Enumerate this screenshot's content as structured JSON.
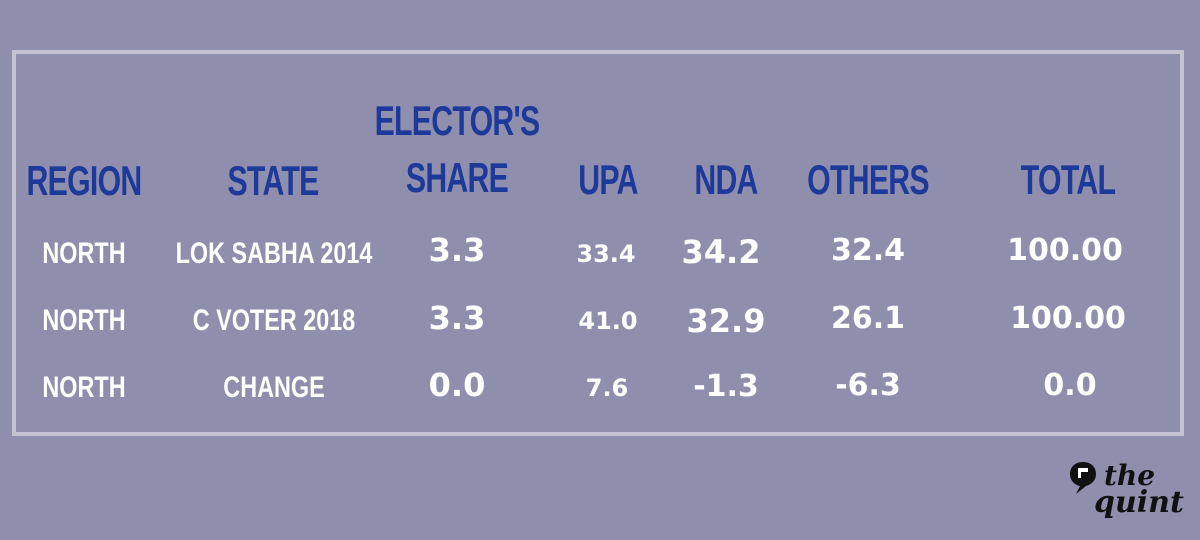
{
  "chart_data": {
    "type": "table",
    "columns": {
      "region": "REGION",
      "state": "STATE",
      "electors_share_line1": "ELECTOR'S",
      "electors_share_line2": "SHARE",
      "upa": "UPA",
      "nda": "NDA",
      "others": "OTHERS",
      "total": "TOTAL"
    },
    "rows": [
      {
        "region": "NORTH",
        "state": "LOK SABHA 2014",
        "share": "3.3",
        "upa": "33.4",
        "nda": "34.2",
        "others": "32.4",
        "total": "100.00"
      },
      {
        "region": "NORTH",
        "state": "C VOTER 2018",
        "share": "3.3",
        "upa": "41.0",
        "nda": "32.9",
        "others": "26.1",
        "total": "100.00"
      },
      {
        "region": "NORTH",
        "state": "CHANGE",
        "share": "0.0",
        "upa": "7.6",
        "nda": "-1.3",
        "others": "-6.3",
        "total": "0.0"
      }
    ]
  },
  "brand": {
    "line1": "the",
    "line2": "quint"
  },
  "colors": {
    "background": "#908ead",
    "header": "#1d3a9a",
    "value": "#ffffff",
    "frame": "#c4c3cf"
  }
}
